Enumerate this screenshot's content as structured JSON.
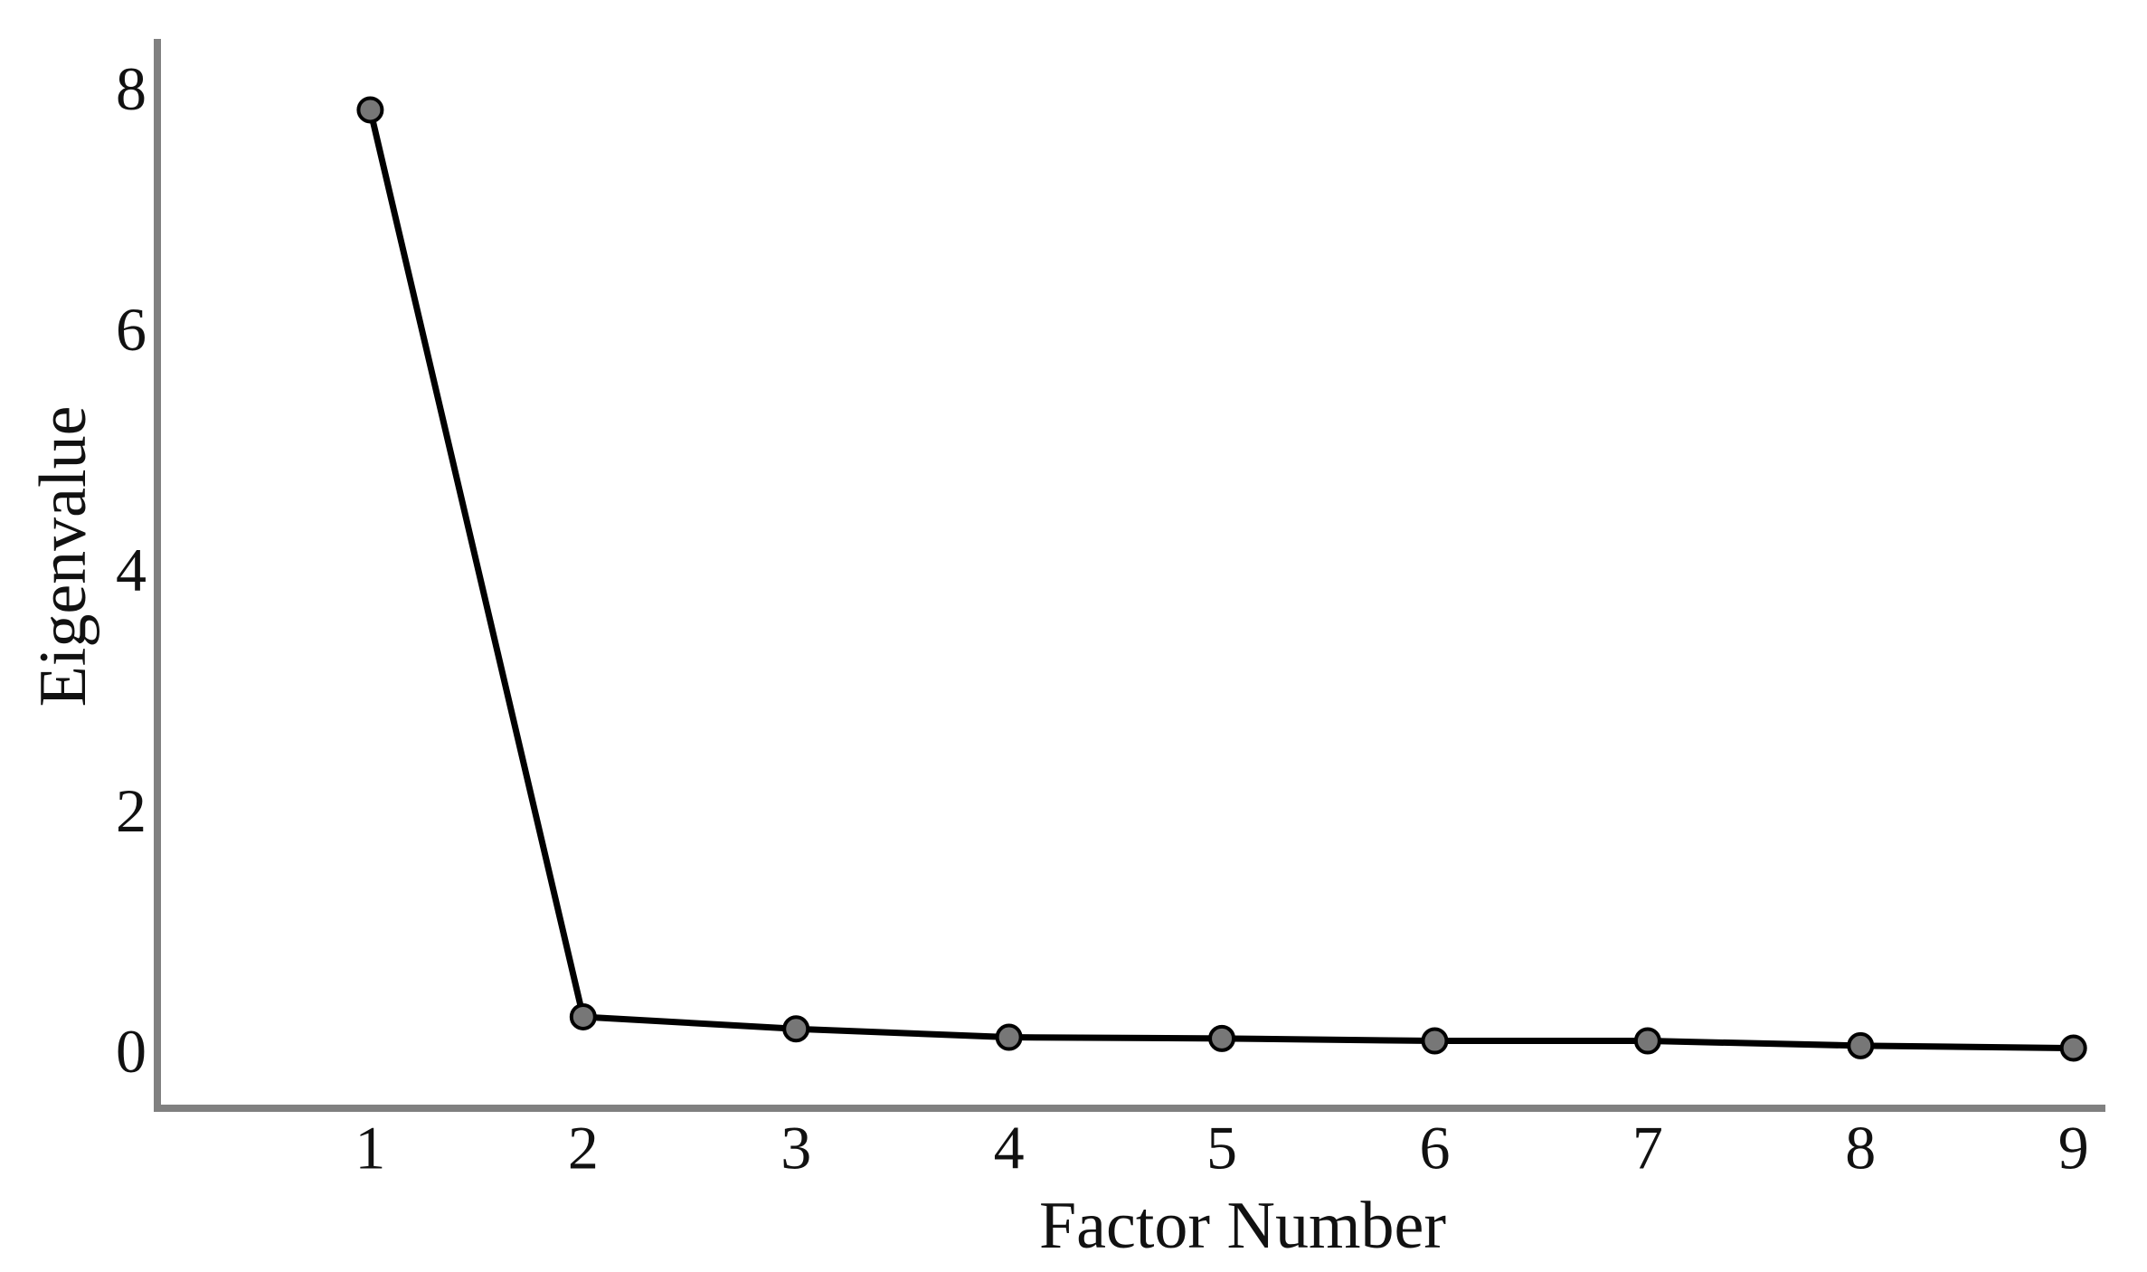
{
  "chart_data": {
    "type": "line",
    "xlabel": "Factor Number",
    "ylabel": "Eigenvalue",
    "x": [
      1,
      2,
      3,
      4,
      5,
      6,
      7,
      8,
      9
    ],
    "series": [
      {
        "color": "#000000",
        "marker_color": "#777777",
        "values": [
          7.88,
          0.34,
          0.24,
          0.17,
          0.16,
          0.14,
          0.14,
          0.1,
          0.08
        ]
      }
    ],
    "xlim": [
      0,
      9.15
    ],
    "ylim": [
      -0.42,
      8.47
    ],
    "xticks": [
      1,
      2,
      3,
      4,
      5,
      6,
      7,
      8,
      9
    ],
    "yticks": [
      0,
      2,
      4,
      6,
      8
    ],
    "grid": false
  }
}
